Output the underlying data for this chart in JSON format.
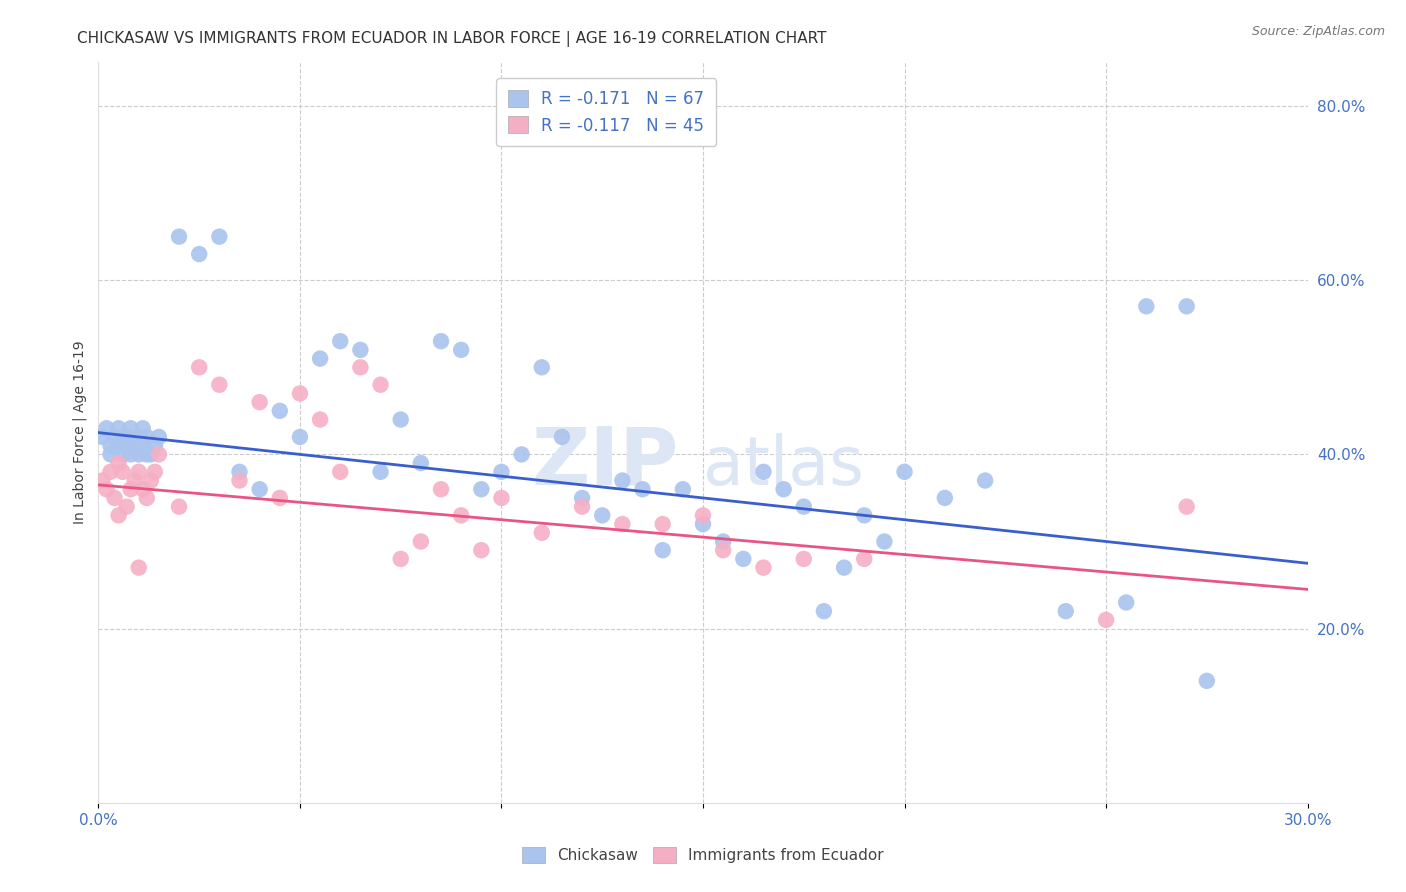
{
  "title": "CHICKASAW VS IMMIGRANTS FROM ECUADOR IN LABOR FORCE | AGE 16-19 CORRELATION CHART",
  "source": "Source: ZipAtlas.com",
  "ylabel": "In Labor Force | Age 16-19",
  "xlim": [
    0.0,
    0.3
  ],
  "ylim": [
    0.0,
    0.85
  ],
  "yticks_right": [
    0.2,
    0.4,
    0.6,
    0.8
  ],
  "ytick_labels_right": [
    "20.0%",
    "40.0%",
    "60.0%",
    "80.0%"
  ],
  "grid_color": "#cccccc",
  "background_color": "#ffffff",
  "series1_name": "Chickasaw",
  "series1_color": "#aac4ee",
  "series1_R": -0.171,
  "series1_N": 67,
  "series1_line_color": "#3a5fcd",
  "series2_name": "Immigrants from Ecuador",
  "series2_color": "#f5afc5",
  "series2_R": -0.117,
  "series2_N": 45,
  "series2_line_color": "#e85585",
  "axis_color": "#4472c4",
  "title_fontsize": 11,
  "axis_label_fontsize": 10,
  "tick_fontsize": 11,
  "watermark_color": "#dce6f5",
  "series1_intercept": 0.425,
  "series1_slope": -0.5,
  "series2_intercept": 0.365,
  "series2_slope": -0.4,
  "chickasaw_x": [
    0.001,
    0.002,
    0.003,
    0.003,
    0.004,
    0.005,
    0.005,
    0.006,
    0.006,
    0.007,
    0.007,
    0.008,
    0.008,
    0.009,
    0.01,
    0.01,
    0.011,
    0.011,
    0.012,
    0.012,
    0.013,
    0.014,
    0.015,
    0.02,
    0.025,
    0.03,
    0.035,
    0.04,
    0.045,
    0.05,
    0.055,
    0.06,
    0.065,
    0.07,
    0.075,
    0.08,
    0.085,
    0.09,
    0.095,
    0.1,
    0.105,
    0.11,
    0.115,
    0.12,
    0.125,
    0.13,
    0.135,
    0.14,
    0.145,
    0.15,
    0.155,
    0.16,
    0.165,
    0.17,
    0.175,
    0.18,
    0.185,
    0.19,
    0.195,
    0.2,
    0.21,
    0.22,
    0.24,
    0.255,
    0.26,
    0.27,
    0.275
  ],
  "chickasaw_y": [
    0.42,
    0.43,
    0.41,
    0.4,
    0.42,
    0.41,
    0.43,
    0.42,
    0.4,
    0.41,
    0.42,
    0.4,
    0.43,
    0.41,
    0.42,
    0.4,
    0.43,
    0.41,
    0.4,
    0.42,
    0.4,
    0.41,
    0.42,
    0.65,
    0.63,
    0.65,
    0.38,
    0.36,
    0.45,
    0.42,
    0.51,
    0.53,
    0.52,
    0.38,
    0.44,
    0.39,
    0.53,
    0.52,
    0.36,
    0.38,
    0.4,
    0.5,
    0.42,
    0.35,
    0.33,
    0.37,
    0.36,
    0.29,
    0.36,
    0.32,
    0.3,
    0.28,
    0.38,
    0.36,
    0.34,
    0.22,
    0.27,
    0.33,
    0.3,
    0.38,
    0.35,
    0.37,
    0.22,
    0.23,
    0.57,
    0.57,
    0.14
  ],
  "ecuador_x": [
    0.001,
    0.002,
    0.003,
    0.004,
    0.005,
    0.005,
    0.006,
    0.007,
    0.008,
    0.009,
    0.01,
    0.01,
    0.011,
    0.012,
    0.013,
    0.014,
    0.015,
    0.02,
    0.025,
    0.03,
    0.035,
    0.04,
    0.045,
    0.05,
    0.055,
    0.06,
    0.065,
    0.07,
    0.075,
    0.08,
    0.085,
    0.09,
    0.095,
    0.1,
    0.11,
    0.12,
    0.13,
    0.14,
    0.15,
    0.155,
    0.165,
    0.175,
    0.19,
    0.25,
    0.27
  ],
  "ecuador_y": [
    0.37,
    0.36,
    0.38,
    0.35,
    0.39,
    0.33,
    0.38,
    0.34,
    0.36,
    0.37,
    0.27,
    0.38,
    0.36,
    0.35,
    0.37,
    0.38,
    0.4,
    0.34,
    0.5,
    0.48,
    0.37,
    0.46,
    0.35,
    0.47,
    0.44,
    0.38,
    0.5,
    0.48,
    0.28,
    0.3,
    0.36,
    0.33,
    0.29,
    0.35,
    0.31,
    0.34,
    0.32,
    0.32,
    0.33,
    0.29,
    0.27,
    0.28,
    0.28,
    0.21,
    0.34
  ]
}
